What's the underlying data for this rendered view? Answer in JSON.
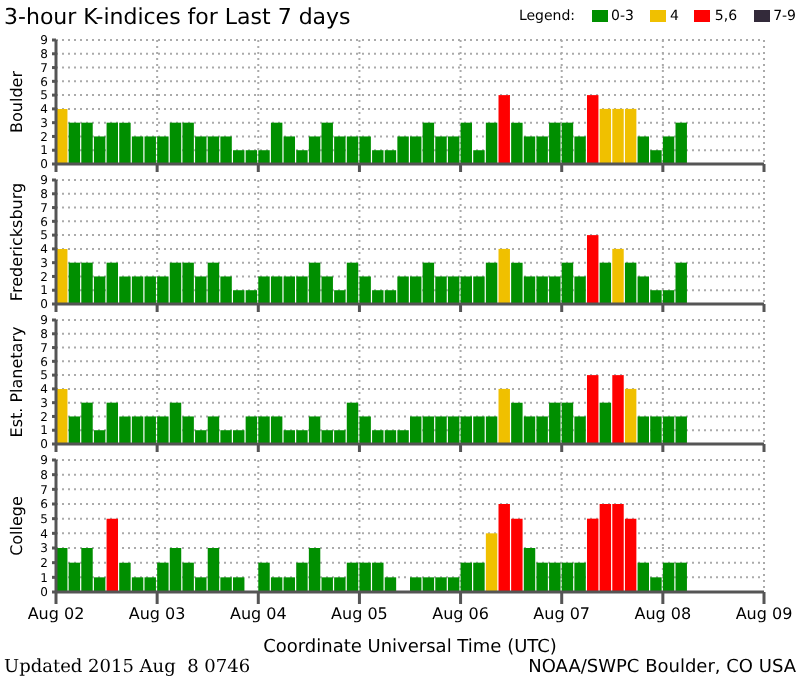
{
  "chart_data": [
    {
      "type": "bar",
      "title": "3-hour K-indices for Last 7 days",
      "ylabel": "Boulder",
      "legend_title": "Legend:",
      "legend": "top right",
      "stacked": true,
      "grid": true,
      "tick_labels": "y",
      "x": [
        "2015-08-02T01:30",
        "2015-08-02T04:30",
        "2015-08-02T07:30",
        "2015-08-02T10:30",
        "2015-08-02T13:30",
        "2015-08-02T16:30",
        "2015-08-02T19:30",
        "2015-08-02T22:30",
        "2015-08-03T01:30",
        "2015-08-03T04:30",
        "2015-08-03T07:30",
        "2015-08-03T10:30",
        "2015-08-03T13:30",
        "2015-08-03T16:30",
        "2015-08-03T19:30",
        "2015-08-03T22:30",
        "2015-08-04T01:30",
        "2015-08-04T04:30",
        "2015-08-04T07:30",
        "2015-08-04T10:30",
        "2015-08-04T13:30",
        "2015-08-04T16:30",
        "2015-08-04T19:30",
        "2015-08-04T22:30",
        "2015-08-05T01:30",
        "2015-08-05T04:30",
        "2015-08-05T07:30",
        "2015-08-05T10:30",
        "2015-08-05T13:30",
        "2015-08-05T16:30",
        "2015-08-05T19:30",
        "2015-08-05T22:30",
        "2015-08-06T01:30",
        "2015-08-06T04:30",
        "2015-08-06T07:30",
        "2015-08-06T10:30",
        "2015-08-06T13:30",
        "2015-08-06T16:30",
        "2015-08-06T19:30",
        "2015-08-06T22:30",
        "2015-08-07T01:30",
        "2015-08-07T04:30",
        "2015-08-07T07:30",
        "2015-08-07T10:30",
        "2015-08-07T13:30",
        "2015-08-07T16:30",
        "2015-08-07T19:30",
        "2015-08-07T22:30",
        "2015-08-08T01:30",
        "2015-08-08T04:30"
      ],
      "xlim": [
        "2015-08-02",
        "2015-08-09"
      ],
      "xticks": [
        {
          "value": "2015-08-02",
          "label": null
        },
        {
          "value": "2015-08-03",
          "label": null
        },
        {
          "value": "2015-08-04",
          "label": null
        },
        {
          "value": "2015-08-05",
          "label": null
        },
        {
          "value": "2015-08-06",
          "label": null
        },
        {
          "value": "2015-08-07",
          "label": null
        },
        {
          "value": "2015-08-08",
          "label": null
        },
        {
          "value": "2015-08-09",
          "label": null
        }
      ],
      "ylim": [
        0,
        9
      ],
      "yticks": [
        0,
        1,
        2,
        3,
        4,
        5,
        6,
        7,
        8,
        9
      ],
      "series": [
        {
          "name": "0-3",
          "color": "#008f00",
          "values": [
            null,
            3,
            3,
            2,
            3,
            3,
            2,
            2,
            2,
            3,
            3,
            2,
            2,
            2,
            1,
            1,
            1,
            3,
            2,
            1,
            2,
            3,
            2,
            2,
            2,
            1,
            1,
            2,
            2,
            3,
            2,
            2,
            3,
            1,
            3,
            null,
            3,
            2,
            2,
            3,
            3,
            2,
            null,
            null,
            null,
            null,
            2,
            1,
            2,
            3
          ]
        },
        {
          "name": "4",
          "color": "#f0c000",
          "values": [
            4,
            null,
            null,
            null,
            null,
            null,
            null,
            null,
            null,
            null,
            null,
            null,
            null,
            null,
            null,
            null,
            null,
            null,
            null,
            null,
            null,
            null,
            null,
            null,
            null,
            null,
            null,
            null,
            null,
            null,
            null,
            null,
            null,
            null,
            null,
            null,
            null,
            null,
            null,
            null,
            null,
            null,
            null,
            4,
            4,
            4,
            null,
            null,
            null,
            null
          ]
        },
        {
          "name": "5,6",
          "color": "#ff0000",
          "values": [
            null,
            null,
            null,
            null,
            null,
            null,
            null,
            null,
            null,
            null,
            null,
            null,
            null,
            null,
            null,
            null,
            null,
            null,
            null,
            null,
            null,
            null,
            null,
            null,
            null,
            null,
            null,
            null,
            null,
            null,
            null,
            null,
            null,
            null,
            null,
            5,
            null,
            null,
            null,
            null,
            null,
            null,
            5,
            null,
            null,
            null,
            null,
            null,
            null,
            null
          ]
        },
        {
          "name": "7-9",
          "color": "#332a3a",
          "values": [
            null,
            null,
            null,
            null,
            null,
            null,
            null,
            null,
            null,
            null,
            null,
            null,
            null,
            null,
            null,
            null,
            null,
            null,
            null,
            null,
            null,
            null,
            null,
            null,
            null,
            null,
            null,
            null,
            null,
            null,
            null,
            null,
            null,
            null,
            null,
            null,
            null,
            null,
            null,
            null,
            null,
            null,
            null,
            null,
            null,
            null,
            null,
            null,
            null,
            null
          ]
        }
      ]
    },
    {
      "type": "bar",
      "ylabel": "Fredericksburg",
      "grid": true,
      "tick_labels": "y",
      "x": [
        "2015-08-02T01:30",
        "2015-08-02T04:30",
        "2015-08-02T07:30",
        "2015-08-02T10:30",
        "2015-08-02T13:30",
        "2015-08-02T16:30",
        "2015-08-02T19:30",
        "2015-08-02T22:30",
        "2015-08-03T01:30",
        "2015-08-03T04:30",
        "2015-08-03T07:30",
        "2015-08-03T10:30",
        "2015-08-03T13:30",
        "2015-08-03T16:30",
        "2015-08-03T19:30",
        "2015-08-03T22:30",
        "2015-08-04T01:30",
        "2015-08-04T04:30",
        "2015-08-04T07:30",
        "2015-08-04T10:30",
        "2015-08-04T13:30",
        "2015-08-04T16:30",
        "2015-08-04T19:30",
        "2015-08-04T22:30",
        "2015-08-05T01:30",
        "2015-08-05T04:30",
        "2015-08-05T07:30",
        "2015-08-05T10:30",
        "2015-08-05T13:30",
        "2015-08-05T16:30",
        "2015-08-05T19:30",
        "2015-08-05T22:30",
        "2015-08-06T01:30",
        "2015-08-06T04:30",
        "2015-08-06T07:30",
        "2015-08-06T10:30",
        "2015-08-06T13:30",
        "2015-08-06T16:30",
        "2015-08-06T19:30",
        "2015-08-06T22:30",
        "2015-08-07T01:30",
        "2015-08-07T04:30",
        "2015-08-07T07:30",
        "2015-08-07T10:30",
        "2015-08-07T13:30",
        "2015-08-07T16:30",
        "2015-08-07T19:30",
        "2015-08-07T22:30",
        "2015-08-08T01:30",
        "2015-08-08T04:30"
      ],
      "xlim": [
        "2015-08-02",
        "2015-08-09"
      ],
      "xticks": [
        {
          "value": "2015-08-02",
          "label": null
        },
        {
          "value": "2015-08-03",
          "label": null
        },
        {
          "value": "2015-08-04",
          "label": null
        },
        {
          "value": "2015-08-05",
          "label": null
        },
        {
          "value": "2015-08-06",
          "label": null
        },
        {
          "value": "2015-08-07",
          "label": null
        },
        {
          "value": "2015-08-08",
          "label": null
        },
        {
          "value": "2015-08-09",
          "label": null
        }
      ],
      "ylim": [
        0,
        9
      ],
      "yticks": [
        0,
        1,
        2,
        3,
        4,
        5,
        6,
        7,
        8,
        9
      ],
      "values": [
        4,
        3,
        3,
        2,
        3,
        2,
        2,
        2,
        2,
        3,
        3,
        2,
        3,
        2,
        1,
        1,
        2,
        2,
        2,
        2,
        3,
        2,
        1,
        3,
        2,
        1,
        1,
        2,
        2,
        3,
        2,
        2,
        2,
        2,
        3,
        4,
        3,
        2,
        2,
        2,
        3,
        2,
        5,
        3,
        4,
        3,
        2,
        1,
        1,
        3
      ],
      "colors": [
        "#f0c000",
        "#008f00",
        "#008f00",
        "#008f00",
        "#008f00",
        "#008f00",
        "#008f00",
        "#008f00",
        "#008f00",
        "#008f00",
        "#008f00",
        "#008f00",
        "#008f00",
        "#008f00",
        "#008f00",
        "#008f00",
        "#008f00",
        "#008f00",
        "#008f00",
        "#008f00",
        "#008f00",
        "#008f00",
        "#008f00",
        "#008f00",
        "#008f00",
        "#008f00",
        "#008f00",
        "#008f00",
        "#008f00",
        "#008f00",
        "#008f00",
        "#008f00",
        "#008f00",
        "#008f00",
        "#008f00",
        "#f0c000",
        "#008f00",
        "#008f00",
        "#008f00",
        "#008f00",
        "#008f00",
        "#008f00",
        "#ff0000",
        "#008f00",
        "#f0c000",
        "#008f00",
        "#008f00",
        "#008f00",
        "#008f00",
        "#008f00"
      ]
    },
    {
      "type": "bar",
      "ylabel": "Est. Planetary",
      "grid": true,
      "tick_labels": "y",
      "x": [
        "2015-08-02T01:30",
        "2015-08-02T04:30",
        "2015-08-02T07:30",
        "2015-08-02T10:30",
        "2015-08-02T13:30",
        "2015-08-02T16:30",
        "2015-08-02T19:30",
        "2015-08-02T22:30",
        "2015-08-03T01:30",
        "2015-08-03T04:30",
        "2015-08-03T07:30",
        "2015-08-03T10:30",
        "2015-08-03T13:30",
        "2015-08-03T16:30",
        "2015-08-03T19:30",
        "2015-08-03T22:30",
        "2015-08-04T01:30",
        "2015-08-04T04:30",
        "2015-08-04T07:30",
        "2015-08-04T10:30",
        "2015-08-04T13:30",
        "2015-08-04T16:30",
        "2015-08-04T19:30",
        "2015-08-04T22:30",
        "2015-08-05T01:30",
        "2015-08-05T04:30",
        "2015-08-05T07:30",
        "2015-08-05T10:30",
        "2015-08-05T13:30",
        "2015-08-05T16:30",
        "2015-08-05T19:30",
        "2015-08-05T22:30",
        "2015-08-06T01:30",
        "2015-08-06T04:30",
        "2015-08-06T07:30",
        "2015-08-06T10:30",
        "2015-08-06T13:30",
        "2015-08-06T16:30",
        "2015-08-06T19:30",
        "2015-08-06T22:30",
        "2015-08-07T01:30",
        "2015-08-07T04:30",
        "2015-08-07T07:30",
        "2015-08-07T10:30",
        "2015-08-07T13:30",
        "2015-08-07T16:30",
        "2015-08-07T19:30",
        "2015-08-07T22:30",
        "2015-08-08T01:30",
        "2015-08-08T04:30"
      ],
      "xlim": [
        "2015-08-02",
        "2015-08-09"
      ],
      "xticks": [
        {
          "value": "2015-08-02",
          "label": null
        },
        {
          "value": "2015-08-03",
          "label": null
        },
        {
          "value": "2015-08-04",
          "label": null
        },
        {
          "value": "2015-08-05",
          "label": null
        },
        {
          "value": "2015-08-06",
          "label": null
        },
        {
          "value": "2015-08-07",
          "label": null
        },
        {
          "value": "2015-08-08",
          "label": null
        },
        {
          "value": "2015-08-09",
          "label": null
        }
      ],
      "ylim": [
        0,
        9
      ],
      "yticks": [
        0,
        1,
        2,
        3,
        4,
        5,
        6,
        7,
        8,
        9
      ],
      "values": [
        4,
        2,
        3,
        1,
        3,
        2,
        2,
        2,
        2,
        3,
        2,
        1,
        2,
        1,
        1,
        2,
        2,
        2,
        1,
        1,
        2,
        1,
        1,
        3,
        2,
        1,
        1,
        1,
        2,
        2,
        2,
        2,
        2,
        2,
        2,
        4,
        3,
        2,
        2,
        3,
        3,
        2,
        5,
        3,
        5,
        4,
        2,
        2,
        2,
        2
      ],
      "colors": [
        "#f0c000",
        "#008f00",
        "#008f00",
        "#008f00",
        "#008f00",
        "#008f00",
        "#008f00",
        "#008f00",
        "#008f00",
        "#008f00",
        "#008f00",
        "#008f00",
        "#008f00",
        "#008f00",
        "#008f00",
        "#008f00",
        "#008f00",
        "#008f00",
        "#008f00",
        "#008f00",
        "#008f00",
        "#008f00",
        "#008f00",
        "#008f00",
        "#008f00",
        "#008f00",
        "#008f00",
        "#008f00",
        "#008f00",
        "#008f00",
        "#008f00",
        "#008f00",
        "#008f00",
        "#008f00",
        "#008f00",
        "#f0c000",
        "#008f00",
        "#008f00",
        "#008f00",
        "#008f00",
        "#008f00",
        "#008f00",
        "#ff0000",
        "#008f00",
        "#ff0000",
        "#f0c000",
        "#008f00",
        "#008f00",
        "#008f00",
        "#008f00"
      ]
    },
    {
      "type": "bar",
      "ylabel": "College",
      "xlabel": "Coordinate Universal Time (UTC)",
      "grid": true,
      "annotations": [
        "Updated 2015 Aug  8 0746",
        "NOAA/SWPC Boulder, CO USA"
      ],
      "x": [
        "2015-08-02T01:30",
        "2015-08-02T04:30",
        "2015-08-02T07:30",
        "2015-08-02T10:30",
        "2015-08-02T13:30",
        "2015-08-02T16:30",
        "2015-08-02T19:30",
        "2015-08-02T22:30",
        "2015-08-03T01:30",
        "2015-08-03T04:30",
        "2015-08-03T07:30",
        "2015-08-03T10:30",
        "2015-08-03T13:30",
        "2015-08-03T16:30",
        "2015-08-03T19:30",
        "2015-08-03T22:30",
        "2015-08-04T01:30",
        "2015-08-04T04:30",
        "2015-08-04T07:30",
        "2015-08-04T10:30",
        "2015-08-04T13:30",
        "2015-08-04T16:30",
        "2015-08-04T19:30",
        "2015-08-04T22:30",
        "2015-08-05T01:30",
        "2015-08-05T04:30",
        "2015-08-05T07:30",
        "2015-08-05T10:30",
        "2015-08-05T13:30",
        "2015-08-05T16:30",
        "2015-08-05T19:30",
        "2015-08-05T22:30",
        "2015-08-06T01:30",
        "2015-08-06T04:30",
        "2015-08-06T07:30",
        "2015-08-06T10:30",
        "2015-08-06T13:30",
        "2015-08-06T16:30",
        "2015-08-06T19:30",
        "2015-08-06T22:30",
        "2015-08-07T01:30",
        "2015-08-07T04:30",
        "2015-08-07T07:30",
        "2015-08-07T10:30",
        "2015-08-07T13:30",
        "2015-08-07T16:30",
        "2015-08-07T19:30",
        "2015-08-07T22:30",
        "2015-08-08T01:30",
        "2015-08-08T04:30"
      ],
      "xlim": [
        "2015-08-02",
        "2015-08-09"
      ],
      "xticks": [
        {
          "value": "2015-08-02",
          "label": "Aug 02"
        },
        {
          "value": "2015-08-03",
          "label": "Aug 03"
        },
        {
          "value": "2015-08-04",
          "label": "Aug 04"
        },
        {
          "value": "2015-08-05",
          "label": "Aug 05"
        },
        {
          "value": "2015-08-06",
          "label": "Aug 06"
        },
        {
          "value": "2015-08-07",
          "label": "Aug 07"
        },
        {
          "value": "2015-08-08",
          "label": "Aug 08"
        },
        {
          "value": "2015-08-09",
          "label": "Aug 09"
        }
      ],
      "ylim": [
        0,
        9
      ],
      "yticks": [
        0,
        1,
        2,
        3,
        4,
        5,
        6,
        7,
        8,
        9
      ],
      "values": [
        3,
        2,
        3,
        1,
        5,
        2,
        1,
        1,
        2,
        3,
        2,
        1,
        3,
        1,
        1,
        0,
        2,
        1,
        1,
        2,
        3,
        1,
        1,
        2,
        2,
        2,
        1,
        0,
        1,
        1,
        1,
        1,
        2,
        2,
        4,
        6,
        5,
        3,
        2,
        2,
        2,
        2,
        5,
        6,
        6,
        5,
        2,
        1,
        2,
        2
      ],
      "colors": [
        "#008f00",
        "#008f00",
        "#008f00",
        "#008f00",
        "#ff0000",
        "#008f00",
        "#008f00",
        "#008f00",
        "#008f00",
        "#008f00",
        "#008f00",
        "#008f00",
        "#008f00",
        "#008f00",
        "#008f00",
        "#008f00",
        "#008f00",
        "#008f00",
        "#008f00",
        "#008f00",
        "#008f00",
        "#008f00",
        "#008f00",
        "#008f00",
        "#008f00",
        "#008f00",
        "#008f00",
        "#008f00",
        "#008f00",
        "#008f00",
        "#008f00",
        "#008f00",
        "#008f00",
        "#008f00",
        "#f0c000",
        "#ff0000",
        "#ff0000",
        "#008f00",
        "#008f00",
        "#008f00",
        "#008f00",
        "#008f00",
        "#ff0000",
        "#ff0000",
        "#ff0000",
        "#ff0000",
        "#008f00",
        "#008f00",
        "#008f00",
        "#008f00"
      ]
    }
  ]
}
